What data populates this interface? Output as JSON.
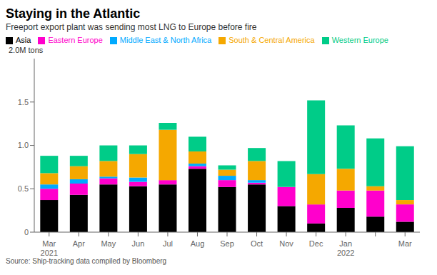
{
  "chart_data": {
    "type": "bar",
    "stacked": true,
    "title": "Staying in the Atlantic",
    "subtitle": "Freeport export plant was sending most LNG to Europe before fire",
    "source": "Source: Ship-tracking data compiled by Bloomberg",
    "ylabel": "2.0M tons",
    "categories": [
      "Mar\n2021",
      "Apr",
      "May",
      "Jun",
      "Jul",
      "Aug",
      "Sep",
      "Oct",
      "Nov",
      "Dec",
      "Jan\n2022",
      null,
      "Mar"
    ],
    "series": [
      {
        "name": "Asia",
        "color": "#000000",
        "values": [
          0.37,
          0.43,
          0.55,
          0.53,
          0.55,
          0.73,
          0.52,
          0.55,
          0.3,
          0.1,
          0.28,
          0.18,
          0.12
        ]
      },
      {
        "name": "Eastern Europe",
        "color": "#ff00cc",
        "values": [
          0.13,
          0.13,
          0.07,
          0.05,
          0.05,
          0.03,
          0.08,
          0.02,
          0.22,
          0.22,
          0.2,
          0.3,
          0.2
        ]
      },
      {
        "name": "Middle East & North Africa",
        "color": "#00aaff",
        "values": [
          0.05,
          0.05,
          0.02,
          0.05,
          0.0,
          0.03,
          0.05,
          0.03,
          0.0,
          0.0,
          0.0,
          0.0,
          0.0
        ]
      },
      {
        "name": "South & Central America",
        "color": "#f5a800",
        "values": [
          0.13,
          0.15,
          0.18,
          0.27,
          0.58,
          0.14,
          0.07,
          0.22,
          0.0,
          0.35,
          0.25,
          0.05,
          0.05
        ]
      },
      {
        "name": "Western Europe",
        "color": "#00cc88",
        "values": [
          0.2,
          0.12,
          0.18,
          0.1,
          0.08,
          0.17,
          0.05,
          0.15,
          0.3,
          0.85,
          0.5,
          0.55,
          0.62
        ]
      }
    ],
    "ylim": [
      0,
      2.0
    ],
    "yticks": [
      0,
      0.5,
      {
        "value": 1.0,
        "label": "1.0"
      },
      1.5
    ],
    "grid": false,
    "legend": "upper left"
  }
}
